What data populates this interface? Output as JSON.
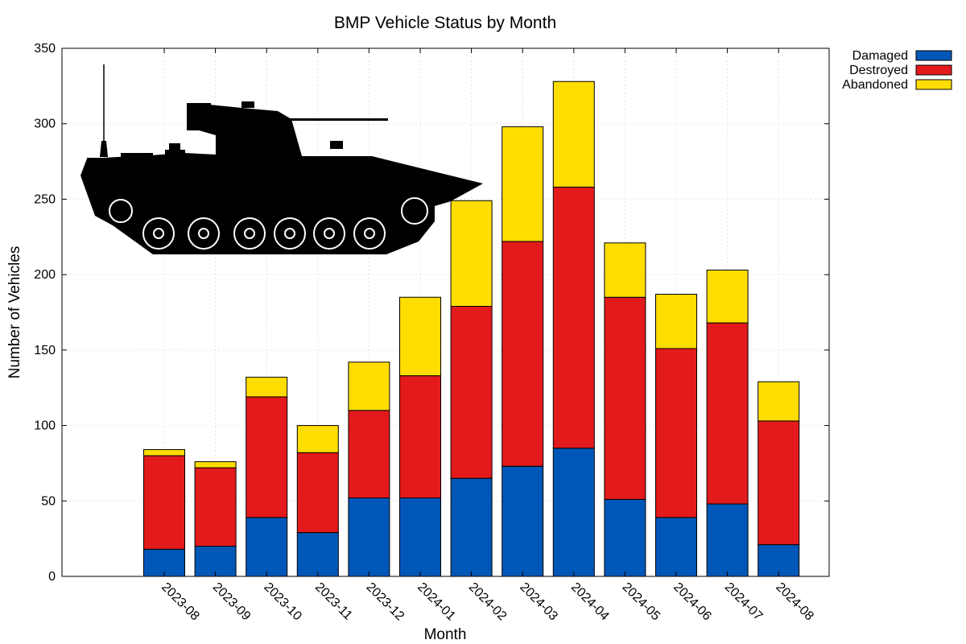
{
  "chart_data": {
    "type": "bar",
    "stacked": true,
    "title": "BMP Vehicle Status by Month",
    "xlabel": "Month",
    "ylabel": "Number of Vehicles",
    "ylim": [
      0,
      350
    ],
    "yticks": [
      0,
      50,
      100,
      150,
      200,
      250,
      300,
      350
    ],
    "grid": true,
    "legend_position": "top-right",
    "categories": [
      "2023-08",
      "2023-09",
      "2023-10",
      "2023-11",
      "2023-12",
      "2024-01",
      "2024-02",
      "2024-03",
      "2024-04",
      "2024-05",
      "2024-06",
      "2024-07",
      "2024-08"
    ],
    "series": [
      {
        "name": "Damaged",
        "color": "#0057b8",
        "values": [
          18,
          20,
          39,
          29,
          52,
          52,
          65,
          73,
          85,
          51,
          39,
          48,
          21
        ]
      },
      {
        "name": "Destroyed",
        "color": "#e31a1c",
        "values": [
          62,
          52,
          80,
          53,
          58,
          81,
          114,
          149,
          173,
          134,
          112,
          120,
          82
        ]
      },
      {
        "name": "Abandoned",
        "color": "#ffdd00",
        "values": [
          4,
          4,
          13,
          18,
          32,
          52,
          70,
          76,
          70,
          36,
          36,
          35,
          26
        ]
      }
    ],
    "decoration": {
      "icon": "bmp-vehicle-silhouette-icon",
      "color": "#000000"
    }
  }
}
